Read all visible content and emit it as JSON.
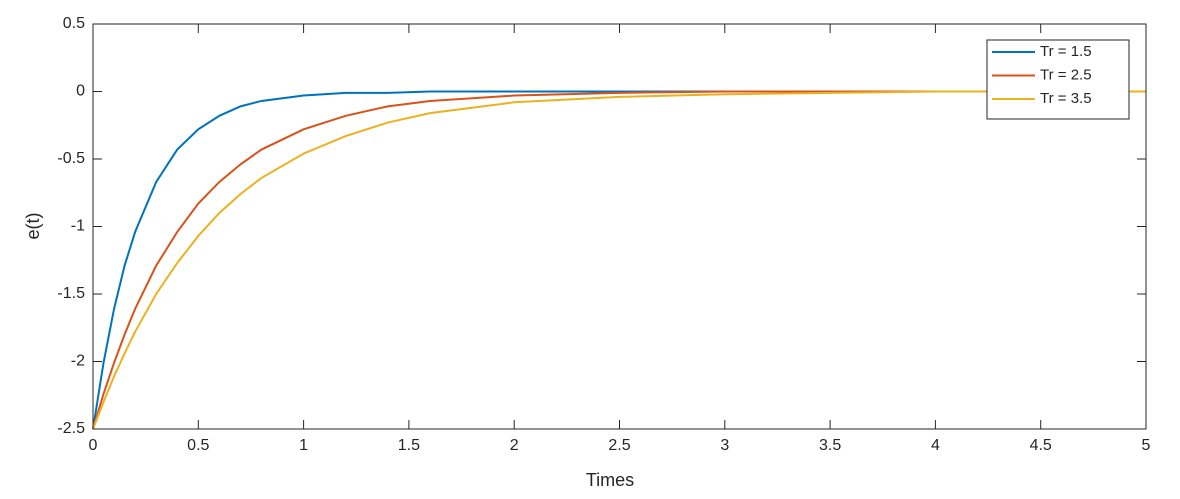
{
  "chart_data": {
    "type": "line",
    "x_label": "Times",
    "y_label": "e(t)",
    "x": [
      0,
      0.05,
      0.1,
      0.15,
      0.2,
      0.3,
      0.4,
      0.5,
      0.6,
      0.7,
      0.8,
      1,
      1.2,
      1.4,
      1.6,
      1.8,
      2,
      2.5,
      3,
      3.5,
      4,
      4.5,
      5
    ],
    "series": [
      {
        "name": "Tr = 1.5",
        "color": "#0072bd",
        "values": [
          -2.5,
          -2.01,
          -1.61,
          -1.29,
          -1.04,
          -0.67,
          -0.43,
          -0.28,
          -0.18,
          -0.11,
          -0.07,
          -0.03,
          -0.01,
          -0.01,
          0,
          0,
          0,
          0,
          0,
          0,
          0,
          0,
          0
        ]
      },
      {
        "name": "Tr = 2.5",
        "color": "#d95319",
        "values": [
          -2.5,
          -2.24,
          -2.01,
          -1.8,
          -1.61,
          -1.29,
          -1.04,
          -0.83,
          -0.67,
          -0.54,
          -0.43,
          -0.28,
          -0.18,
          -0.11,
          -0.07,
          -0.05,
          -0.03,
          -0.01,
          0,
          0,
          0,
          0,
          0
        ]
      },
      {
        "name": "Tr = 3.5",
        "color": "#edb120",
        "values": [
          -2.5,
          -2.3,
          -2.11,
          -1.94,
          -1.78,
          -1.5,
          -1.27,
          -1.07,
          -0.9,
          -0.76,
          -0.64,
          -0.46,
          -0.33,
          -0.23,
          -0.16,
          -0.12,
          -0.08,
          -0.04,
          -0.02,
          -0.01,
          0,
          0,
          0
        ]
      }
    ],
    "xlim": [
      0,
      5
    ],
    "xticks": [
      0,
      0.5,
      1,
      1.5,
      2,
      2.5,
      3,
      3.5,
      4,
      4.5,
      5
    ],
    "ylim": [
      -2.5,
      0.5
    ],
    "yticks": [
      -2.5,
      -2,
      -1.5,
      -1,
      -0.5,
      0,
      0.5
    ],
    "grid": false,
    "legend_position": "top-right"
  }
}
